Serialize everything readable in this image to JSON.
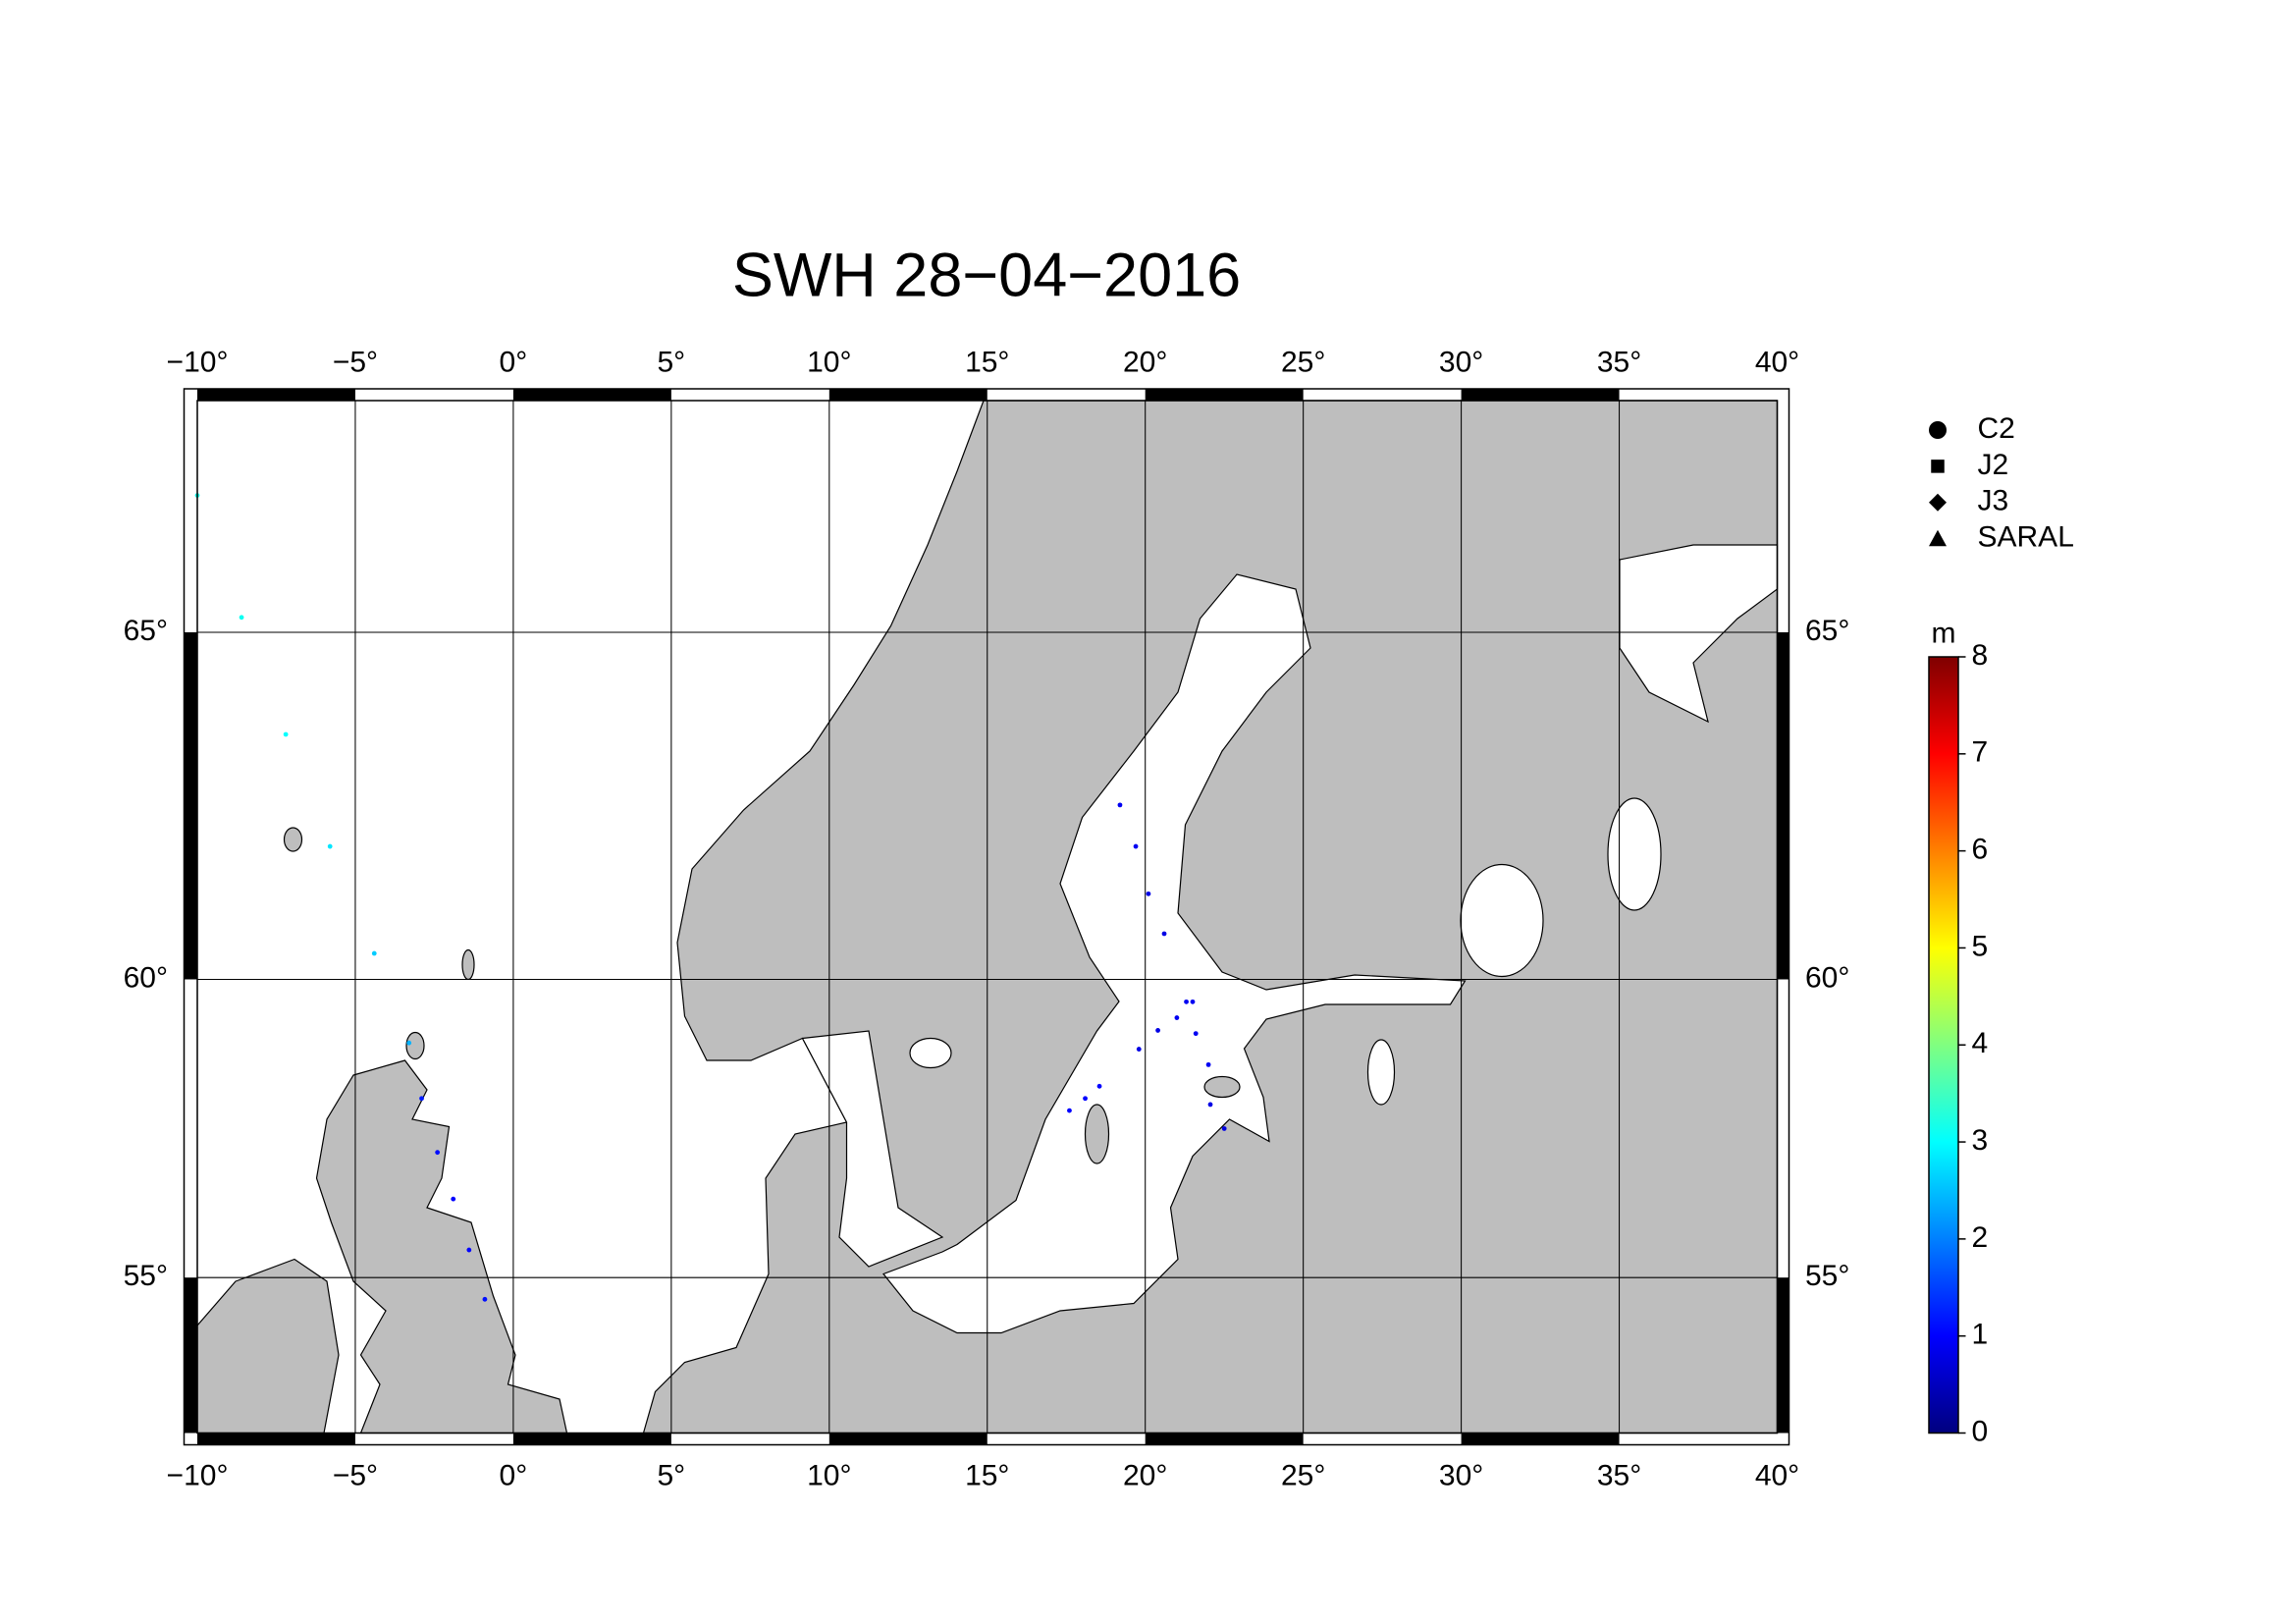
{
  "map": {
    "title": "SWH 28−04−2016",
    "xlim": [
      -10,
      40
    ],
    "ylim": [
      52,
      68
    ],
    "xticks": [
      {
        "value": -10,
        "label": "−10°"
      },
      {
        "value": -5,
        "label": "−5°"
      },
      {
        "value": 0,
        "label": "0°"
      },
      {
        "value": 5,
        "label": "5°"
      },
      {
        "value": 10,
        "label": "10°"
      },
      {
        "value": 15,
        "label": "15°"
      },
      {
        "value": 20,
        "label": "20°"
      },
      {
        "value": 25,
        "label": "25°"
      },
      {
        "value": 30,
        "label": "30°"
      },
      {
        "value": 35,
        "label": "35°"
      },
      {
        "value": 40,
        "label": "40°"
      }
    ],
    "yticks": [
      {
        "value": 55,
        "label": "55°"
      },
      {
        "value": 60,
        "label": "60°"
      },
      {
        "value": 65,
        "label": "65°"
      }
    ],
    "grid": true,
    "legend": [
      {
        "name": "C2",
        "marker": "circle"
      },
      {
        "name": "J2",
        "marker": "square"
      },
      {
        "name": "J3",
        "marker": "diamond"
      },
      {
        "name": "SARAL",
        "marker": "triangle"
      }
    ],
    "colorbar": {
      "label": "m",
      "clim": [
        0,
        8
      ],
      "ticks": [
        0,
        1,
        2,
        3,
        4,
        5,
        6,
        7,
        8
      ],
      "colormap": [
        "#00007f",
        "#0000ff",
        "#0080ff",
        "#00ffff",
        "#80ff80",
        "#ffff00",
        "#ff8000",
        "#ff0000",
        "#7f0000"
      ]
    },
    "tracks": [
      {
        "lon": [
          -10,
          -8.6,
          -7.2,
          -5.8,
          -4.4,
          -3.3
        ],
        "lat": [
          66.8,
          65.2,
          63.6,
          62.0,
          60.4,
          59.0
        ],
        "swh": [
          3.2,
          3.1,
          3.0,
          2.8,
          2.6,
          2.4
        ]
      },
      {
        "lon": [
          -2.9,
          -2.4,
          -1.9,
          -1.4,
          -0.9
        ],
        "lat": [
          58.1,
          57.2,
          56.4,
          55.5,
          54.6
        ],
        "swh": [
          1.2,
          1.1,
          1.0,
          1.0,
          1.1
        ]
      },
      {
        "lon": [
          19.2,
          19.7,
          20.1,
          20.6
        ],
        "lat": [
          62.6,
          62.0,
          61.3,
          60.7
        ],
        "swh": [
          0.9,
          0.9,
          0.8,
          0.8
        ]
      },
      {
        "lon": [
          19.8,
          20.4,
          21.0,
          21.5
        ],
        "lat": [
          58.9,
          59.2,
          59.4,
          59.65
        ],
        "swh": [
          0.8,
          0.8,
          0.9,
          0.9
        ]
      },
      {
        "lon": [
          17.6,
          18.1,
          18.55
        ],
        "lat": [
          57.9,
          58.1,
          58.3
        ],
        "swh": [
          1.0,
          1.0,
          1.0
        ]
      },
      {
        "lon": [
          21.3,
          21.6,
          22.0
        ],
        "lat": [
          59.65,
          59.15,
          58.65
        ],
        "swh": [
          0.9,
          0.9,
          0.9
        ]
      },
      {
        "lon": [
          22.06,
          22.5
        ],
        "lat": [
          58.0,
          57.6
        ],
        "swh": [
          0.8,
          0.8
        ]
      }
    ]
  }
}
